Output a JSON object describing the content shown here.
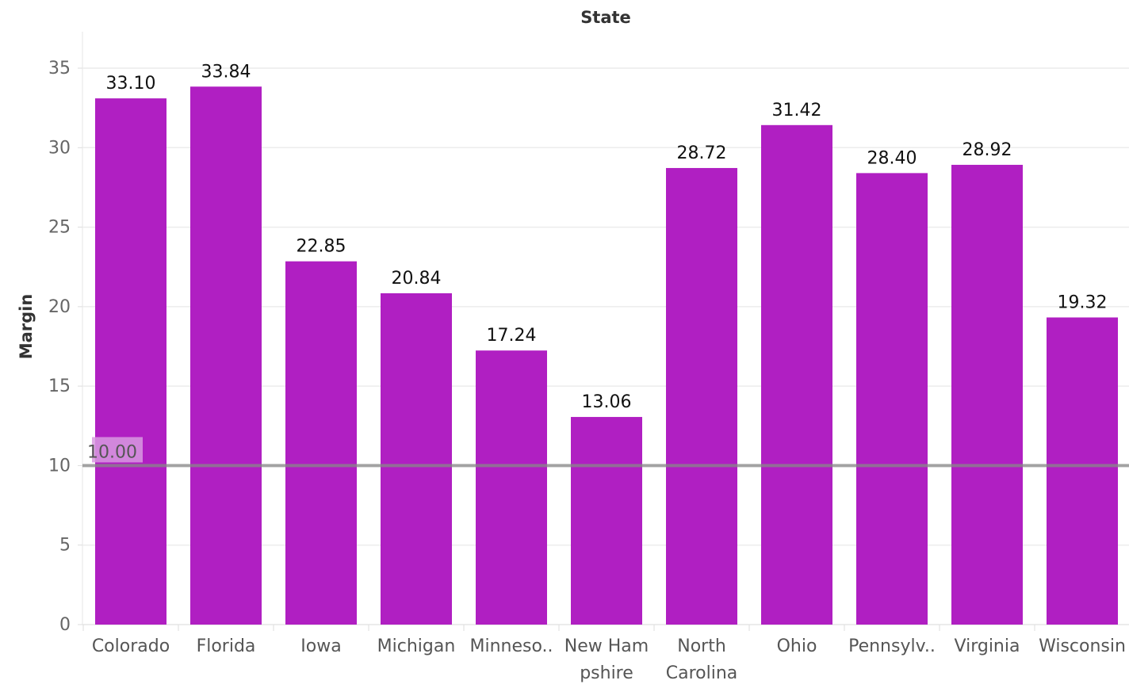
{
  "chart_data": {
    "type": "bar",
    "title": "State",
    "xlabel": "",
    "ylabel": "Margin",
    "ylim": [
      0,
      35
    ],
    "yticks": [
      0,
      5,
      10,
      15,
      20,
      25,
      30,
      35
    ],
    "grid": true,
    "categories": [
      [
        "Colorado"
      ],
      [
        "Florida"
      ],
      [
        "Iowa"
      ],
      [
        "Michigan"
      ],
      [
        "Minneso.."
      ],
      [
        "New Ham",
        "pshire"
      ],
      [
        "North",
        "Carolina"
      ],
      [
        "Ohio"
      ],
      [
        "Pennsylv.."
      ],
      [
        "Virginia"
      ],
      [
        "Wisconsin"
      ]
    ],
    "values": [
      33.1,
      33.84,
      22.85,
      20.84,
      17.24,
      13.06,
      28.72,
      31.42,
      28.4,
      28.92,
      19.32
    ],
    "value_labels": [
      "33.10",
      "33.84",
      "22.85",
      "20.84",
      "17.24",
      "13.06",
      "28.72",
      "31.42",
      "28.40",
      "28.92",
      "19.32"
    ],
    "reference_line": {
      "value": 10,
      "label": "10.00"
    },
    "colors": {
      "bar": "#b01fc2",
      "reference_line": "#888888",
      "reference_label_bg": "#d89ae0",
      "grid": "#ececec"
    }
  }
}
